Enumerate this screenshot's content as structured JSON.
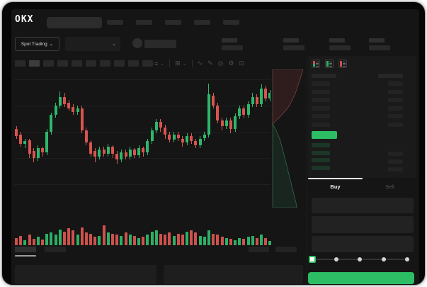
{
  "colors": {
    "green": "#2eb76a",
    "red": "#d8544f",
    "accent_green": "#2dbd64",
    "bid_row_green": "#1c3627",
    "panel_bg": "#151515",
    "window_bg": "#060606"
  },
  "header": {
    "logo": "OKX",
    "search_placeholder": "",
    "nav_placeholder_count": 5
  },
  "market_bar": {
    "market_type_label": "Spot Trading",
    "chevron": "⌄",
    "stats_count": 4
  },
  "chart_toolbar": {
    "timeframe_count": 10,
    "active_timeframe_index": 1,
    "chevron": "⌄",
    "icons": [
      {
        "name": "indicators-icon",
        "glyph": "≡",
        "dropdown": true
      },
      {
        "name": "chart-layout-icon",
        "glyph": "⊞",
        "dropdown": true
      },
      {
        "name": "line-style-icon",
        "glyph": "∿",
        "dropdown": false
      },
      {
        "name": "draw-icon",
        "glyph": "✎",
        "dropdown": false
      },
      {
        "name": "snapshot-icon",
        "glyph": "◎",
        "dropdown": false
      },
      {
        "name": "chart-settings-icon",
        "glyph": "⚙",
        "dropdown": false
      },
      {
        "name": "fullscreen-icon",
        "glyph": "⊡",
        "dropdown": false
      }
    ]
  },
  "chart_data": {
    "type": "candlestick",
    "title": "",
    "xlabel": "",
    "ylabel": "",
    "x_axis_visible": false,
    "y_axis_visible": false,
    "price_scale_note": "no axis labels visible; values normalized 0-100",
    "ylim": [
      0,
      100
    ],
    "grid": "horizontal-faint",
    "gridline_levels": [
      17,
      36,
      55,
      74,
      93
    ],
    "candles_ohlc": [
      [
        57,
        59,
        50,
        52
      ],
      [
        53,
        55,
        44,
        46
      ],
      [
        46,
        50,
        43,
        48
      ],
      [
        49,
        50,
        36,
        39
      ],
      [
        41,
        43,
        33,
        36
      ],
      [
        36,
        45,
        34,
        43
      ],
      [
        43,
        44,
        37,
        40
      ],
      [
        40,
        57,
        38,
        55
      ],
      [
        55,
        69,
        53,
        67
      ],
      [
        67,
        76,
        65,
        74
      ],
      [
        74,
        84,
        72,
        80
      ],
      [
        80,
        83,
        73,
        75
      ],
      [
        76,
        78,
        70,
        72
      ],
      [
        73,
        75,
        67,
        69
      ],
      [
        69,
        74,
        67,
        72
      ],
      [
        72,
        74,
        54,
        56
      ],
      [
        56,
        58,
        45,
        47
      ],
      [
        47,
        49,
        37,
        39
      ],
      [
        41,
        43,
        33,
        37
      ],
      [
        37,
        44,
        35,
        42
      ],
      [
        42,
        44,
        37,
        39
      ],
      [
        39,
        46,
        37,
        44
      ],
      [
        44,
        45,
        36,
        39
      ],
      [
        39,
        41,
        32,
        35
      ],
      [
        35,
        42,
        33,
        40
      ],
      [
        40,
        42,
        35,
        37
      ],
      [
        37,
        44,
        35,
        42
      ],
      [
        42,
        43,
        36,
        38
      ],
      [
        38,
        45,
        36,
        43
      ],
      [
        43,
        44,
        37,
        40
      ],
      [
        40,
        50,
        38,
        48
      ],
      [
        48,
        58,
        46,
        56
      ],
      [
        56,
        64,
        54,
        62
      ],
      [
        62,
        64,
        55,
        58
      ],
      [
        58,
        60,
        50,
        53
      ],
      [
        53,
        55,
        47,
        49
      ],
      [
        49,
        55,
        47,
        53
      ],
      [
        53,
        55,
        48,
        50
      ],
      [
        50,
        52,
        44,
        47
      ],
      [
        47,
        54,
        45,
        52
      ],
      [
        52,
        54,
        46,
        48
      ],
      [
        48,
        50,
        43,
        45
      ],
      [
        45,
        52,
        43,
        50
      ],
      [
        50,
        55,
        48,
        53
      ],
      [
        53,
        90,
        51,
        82
      ],
      [
        81,
        83,
        72,
        74
      ],
      [
        74,
        76,
        61,
        63
      ],
      [
        63,
        65,
        56,
        59
      ],
      [
        59,
        65,
        57,
        63
      ],
      [
        63,
        65,
        54,
        57
      ],
      [
        57,
        68,
        55,
        66
      ],
      [
        66,
        74,
        64,
        72
      ],
      [
        72,
        74,
        65,
        67
      ],
      [
        67,
        77,
        65,
        75
      ],
      [
        75,
        83,
        73,
        80
      ],
      [
        80,
        82,
        73,
        75
      ],
      [
        75,
        89,
        73,
        86
      ],
      [
        86,
        88,
        77,
        79
      ],
      [
        79,
        85,
        77,
        83
      ]
    ],
    "volume": [
      0.35,
      0.45,
      0.25,
      0.5,
      0.3,
      0.4,
      0.28,
      0.55,
      0.6,
      0.5,
      0.75,
      0.65,
      0.8,
      0.7,
      0.5,
      0.85,
      0.6,
      0.55,
      0.4,
      0.45,
      0.95,
      0.6,
      0.55,
      0.5,
      0.45,
      0.6,
      0.5,
      0.45,
      0.35,
      0.4,
      0.5,
      0.65,
      0.7,
      0.55,
      0.5,
      0.6,
      0.45,
      0.55,
      0.5,
      0.65,
      0.7,
      0.6,
      0.45,
      0.4,
      0.7,
      0.55,
      0.5,
      0.4,
      0.35,
      0.3,
      0.25,
      0.35,
      0.3,
      0.4,
      0.45,
      0.35,
      0.5,
      0.35,
      0.2
    ]
  },
  "depth_panel": {
    "orientation": "vertical",
    "ask_polygon": [
      [
        4,
        0
      ],
      [
        47,
        0
      ],
      [
        44,
        10
      ],
      [
        40,
        22
      ],
      [
        36,
        34
      ],
      [
        31,
        45
      ],
      [
        25,
        55
      ],
      [
        17,
        64
      ],
      [
        9,
        72
      ],
      [
        4,
        77
      ]
    ],
    "bid_polygon": [
      [
        4,
        77
      ],
      [
        9,
        86
      ],
      [
        14,
        98
      ],
      [
        18,
        112
      ],
      [
        22,
        128
      ],
      [
        26,
        144
      ],
      [
        30,
        160
      ],
      [
        34,
        176
      ],
      [
        37,
        188
      ],
      [
        38,
        195
      ],
      [
        4,
        195
      ]
    ]
  },
  "order_book": {
    "view_toggles": [
      "combined-book-icon",
      "bids-book-icon",
      "asks-book-icon"
    ],
    "column_header_placeholders": 2,
    "ask_row_count": 6,
    "bid_row_count": 4,
    "bid_amount_row_count": 3,
    "last_price_highlighted": true
  },
  "trade_panel": {
    "tabs": [
      {
        "label": "Buy",
        "active": true
      },
      {
        "label": "Sell",
        "active": false
      }
    ],
    "field_count": 3,
    "slider_stop_count": 5,
    "slider_value_index": 0
  },
  "bottom_bar": {
    "left_tab_count": 2,
    "active_left_tab_index": 0,
    "right_item_count": 2,
    "panel_count": 2
  }
}
